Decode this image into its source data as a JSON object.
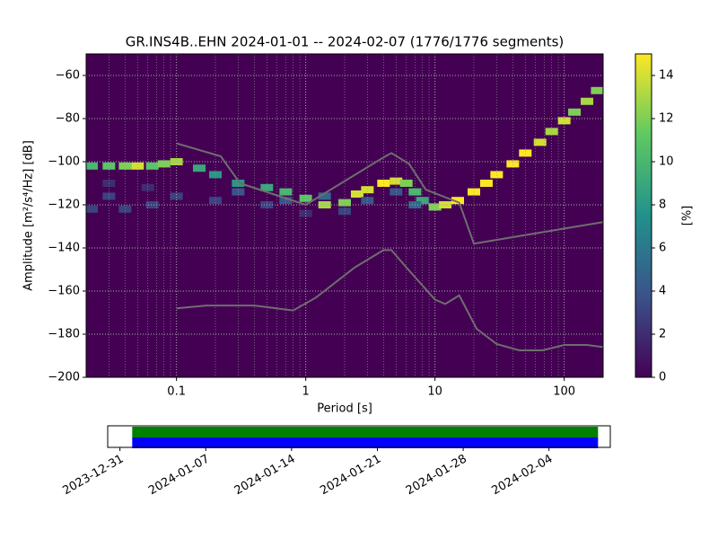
{
  "chart_data": [
    {
      "type": "heatmap",
      "title": "GR.INS4B..EHN   2024-01-01 -- 2024-02-07  (1776/1776 segments)",
      "x_label": "Period [s]",
      "y_label": "Amplitude [m²/s⁴/Hz] [dB]",
      "colorbar_label": "[%]",
      "log_x": true,
      "grid": true,
      "xlim": [
        0.02,
        200
      ],
      "ylim": [
        -200,
        -50
      ],
      "xticks": [
        0.1,
        1,
        10,
        100
      ],
      "yticks": [
        {
          "value": -200,
          "label": "−200"
        },
        {
          "value": -180,
          "label": "−180"
        },
        {
          "value": -160,
          "label": "−160"
        },
        {
          "value": -140,
          "label": "−140"
        },
        {
          "value": -120,
          "label": "−120"
        },
        {
          "value": -100,
          "label": "−100"
        },
        {
          "value": -80,
          "label": "−80"
        },
        {
          "value": -60,
          "label": "−60"
        }
      ],
      "clim": [
        0,
        15
      ],
      "cticks": [
        0,
        2,
        4,
        6,
        8,
        10,
        12,
        14
      ],
      "colormap": [
        "#440154",
        "#3b528b",
        "#21918c",
        "#5ec962",
        "#fde725"
      ],
      "cells": [
        {
          "x": 0.022,
          "y": -102,
          "v": 10
        },
        {
          "x": 0.03,
          "y": -102,
          "v": 11
        },
        {
          "x": 0.04,
          "y": -102,
          "v": 12
        },
        {
          "x": 0.05,
          "y": -102,
          "v": 14
        },
        {
          "x": 0.065,
          "y": -102,
          "v": 11
        },
        {
          "x": 0.08,
          "y": -101,
          "v": 12
        },
        {
          "x": 0.1,
          "y": -100,
          "v": 13
        },
        {
          "x": 0.022,
          "y": -122,
          "v": 3
        },
        {
          "x": 0.04,
          "y": -122,
          "v": 3
        },
        {
          "x": 0.065,
          "y": -120,
          "v": 3
        },
        {
          "x": 0.1,
          "y": -116,
          "v": 3
        },
        {
          "x": 0.03,
          "y": -110,
          "v": 2
        },
        {
          "x": 0.06,
          "y": -112,
          "v": 2
        },
        {
          "x": 0.03,
          "y": -116,
          "v": 3
        },
        {
          "x": 0.15,
          "y": -103,
          "v": 9
        },
        {
          "x": 0.2,
          "y": -106,
          "v": 8
        },
        {
          "x": 0.3,
          "y": -110,
          "v": 8
        },
        {
          "x": 0.5,
          "y": -112,
          "v": 9
        },
        {
          "x": 0.7,
          "y": -114,
          "v": 10
        },
        {
          "x": 1,
          "y": -117,
          "v": 11
        },
        {
          "x": 1.4,
          "y": -120,
          "v": 13
        },
        {
          "x": 2,
          "y": -119,
          "v": 12
        },
        {
          "x": 2.5,
          "y": -115,
          "v": 14
        },
        {
          "x": 3,
          "y": -113,
          "v": 14
        },
        {
          "x": 4,
          "y": -110,
          "v": 15
        },
        {
          "x": 5,
          "y": -109,
          "v": 14
        },
        {
          "x": 6,
          "y": -110,
          "v": 12
        },
        {
          "x": 7,
          "y": -114,
          "v": 10
        },
        {
          "x": 8,
          "y": -118,
          "v": 9
        },
        {
          "x": 10,
          "y": -121,
          "v": 12
        },
        {
          "x": 12,
          "y": -120,
          "v": 14
        },
        {
          "x": 15,
          "y": -118,
          "v": 15
        },
        {
          "x": 20,
          "y": -114,
          "v": 15
        },
        {
          "x": 25,
          "y": -110,
          "v": 15
        },
        {
          "x": 30,
          "y": -106,
          "v": 15
        },
        {
          "x": 40,
          "y": -101,
          "v": 15
        },
        {
          "x": 50,
          "y": -96,
          "v": 15
        },
        {
          "x": 65,
          "y": -91,
          "v": 14
        },
        {
          "x": 80,
          "y": -86,
          "v": 13
        },
        {
          "x": 100,
          "y": -81,
          "v": 14
        },
        {
          "x": 120,
          "y": -77,
          "v": 12
        },
        {
          "x": 150,
          "y": -72,
          "v": 13
        },
        {
          "x": 180,
          "y": -67,
          "v": 12
        },
        {
          "x": 0.2,
          "y": -118,
          "v": 3
        },
        {
          "x": 0.3,
          "y": -114,
          "v": 4
        },
        {
          "x": 0.5,
          "y": -120,
          "v": 3
        },
        {
          "x": 0.7,
          "y": -118,
          "v": 4
        },
        {
          "x": 1,
          "y": -124,
          "v": 2
        },
        {
          "x": 1.4,
          "y": -116,
          "v": 5
        },
        {
          "x": 2,
          "y": -123,
          "v": 3
        },
        {
          "x": 3,
          "y": -118,
          "v": 4
        },
        {
          "x": 5,
          "y": -114,
          "v": 4
        },
        {
          "x": 7,
          "y": -120,
          "v": 5
        }
      ],
      "lines": [
        {
          "color": "#6e6e6e",
          "x": [
            0.1,
            0.22,
            0.31,
            1,
            4,
            4.6,
            6.3,
            8.5,
            15.4,
            20,
            200
          ],
          "y": [
            -91.5,
            -97.5,
            -110,
            -120,
            -98,
            -96,
            -101,
            -113,
            -119,
            -138,
            -128
          ]
        },
        {
          "color": "#6e6e6e",
          "x": [
            0.1,
            0.17,
            0.4,
            0.8,
            1.2,
            2.4,
            4,
            4.6,
            6,
            10,
            12,
            15.4,
            21,
            30,
            45,
            68,
            100,
            150,
            200
          ],
          "y": [
            -168,
            -166.7,
            -166.7,
            -169,
            -163,
            -149,
            -141,
            -141,
            -149,
            -164,
            -166,
            -162,
            -177.5,
            -184.6,
            -187.5,
            -187.5,
            -185,
            -185,
            -186
          ]
        }
      ]
    },
    {
      "type": "timeline",
      "xlim": [
        "2023-12-30",
        "2024-02-09"
      ],
      "xticks": [
        "2023-12-31",
        "2024-01-07",
        "2024-01-14",
        "2024-01-21",
        "2024-01-28",
        "2024-02-04"
      ],
      "bars": [
        {
          "color": "#008000",
          "start": "2024-01-01",
          "end": "2024-02-08"
        },
        {
          "color": "#0000ff",
          "start": "2024-01-01",
          "end": "2024-02-08"
        }
      ]
    }
  ]
}
